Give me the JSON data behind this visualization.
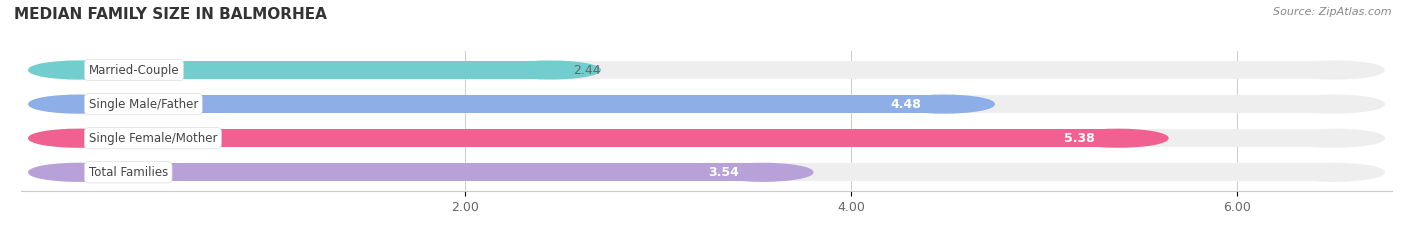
{
  "title": "MEDIAN FAMILY SIZE IN BALMORHEA",
  "source": "Source: ZipAtlas.com",
  "categories": [
    "Married-Couple",
    "Single Male/Father",
    "Single Female/Mother",
    "Total Families"
  ],
  "values": [
    2.44,
    4.48,
    5.38,
    3.54
  ],
  "bar_colors": [
    "#72cece",
    "#8eaee8",
    "#f06090",
    "#b8a0d8"
  ],
  "bar_bg_color": "#eeeeee",
  "xlim": [
    0,
    6.5
  ],
  "xmin": 0,
  "xmax": 6.5,
  "xticks": [
    2.0,
    4.0,
    6.0
  ],
  "xtick_labels": [
    "2.00",
    "4.00",
    "6.00"
  ],
  "value_color_inside": "#ffffff",
  "value_color_outside": "#666666",
  "bar_height": 0.52,
  "background_color": "#ffffff",
  "fig_width": 14.06,
  "fig_height": 2.33,
  "title_fontsize": 11,
  "source_fontsize": 8,
  "label_fontsize": 8.5,
  "value_fontsize": 9
}
